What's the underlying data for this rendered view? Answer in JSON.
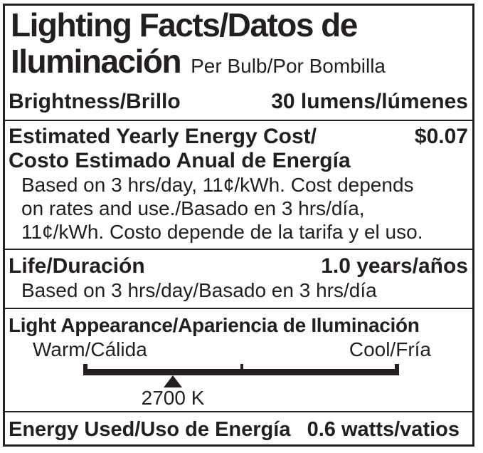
{
  "colors": {
    "ink": "#231f20",
    "background": "#ffffff"
  },
  "header": {
    "title_line1": "Lighting Facts/Datos de",
    "title_line2": "Iluminación",
    "per_bulb": "Per Bulb/Por Bombilla"
  },
  "brightness": {
    "label": "Brightness/Brillo",
    "value": "30 lumens/lúmenes"
  },
  "energy_cost": {
    "label_en": "Estimated Yearly Energy Cost/",
    "label_es": "Costo Estimado Anual de Energía",
    "value": "$0.07",
    "notes": [
      "Based on 3 hrs/day, 11¢/kWh. Cost depends",
      "on rates and use./Basado en 3 hrs/día,",
      "11¢/kWh. Costo depende de la tarifa y el uso."
    ]
  },
  "life": {
    "label": "Life/Duración",
    "value": "1.0 years/años",
    "note": "Based on 3 hrs/day/Basado en 3 hrs/día"
  },
  "light_appearance": {
    "label": "Light Appearance/Apariencia de Iluminación",
    "warm": "Warm/Cálida",
    "cool": "Cool/Fría",
    "kelvin": "2700 K"
  },
  "energy_used": {
    "label": "Energy Used/Uso de Energía",
    "value": "0.6 watts/vatios"
  }
}
